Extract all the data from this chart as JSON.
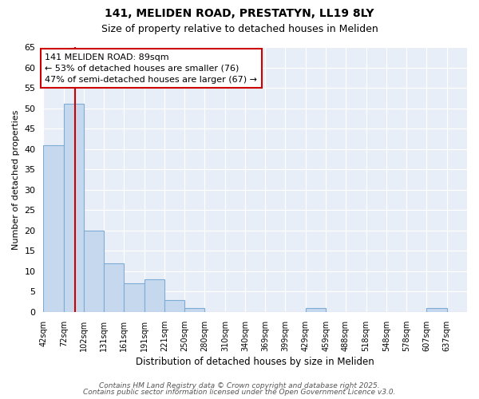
{
  "title1": "141, MELIDEN ROAD, PRESTATYN, LL19 8LY",
  "title2": "Size of property relative to detached houses in Meliden",
  "xlabel": "Distribution of detached houses by size in Meliden",
  "ylabel": "Number of detached properties",
  "bin_edges": [
    42,
    72,
    102,
    131,
    161,
    191,
    221,
    250,
    280,
    310,
    340,
    369,
    399,
    429,
    459,
    488,
    518,
    548,
    578,
    607,
    637
  ],
  "bin_labels": [
    "42sqm",
    "72sqm",
    "102sqm",
    "131sqm",
    "161sqm",
    "191sqm",
    "221sqm",
    "250sqm",
    "280sqm",
    "310sqm",
    "340sqm",
    "369sqm",
    "399sqm",
    "429sqm",
    "459sqm",
    "488sqm",
    "518sqm",
    "548sqm",
    "578sqm",
    "607sqm",
    "637sqm"
  ],
  "counts": [
    41,
    51,
    20,
    12,
    7,
    8,
    3,
    1,
    0,
    0,
    0,
    0,
    0,
    1,
    0,
    0,
    0,
    0,
    0,
    1,
    0
  ],
  "bar_color": "#c5d8ee",
  "bar_edge_color": "#7dadd4",
  "property_size": 89,
  "red_line_color": "#cc0000",
  "annotation_text": "141 MELIDEN ROAD: 89sqm\n← 53% of detached houses are smaller (76)\n47% of semi-detached houses are larger (67) →",
  "annotation_box_color": "#ffffff",
  "annotation_box_edge": "#cc0000",
  "ylim": [
    0,
    65
  ],
  "yticks": [
    0,
    5,
    10,
    15,
    20,
    25,
    30,
    35,
    40,
    45,
    50,
    55,
    60,
    65
  ],
  "footer1": "Contains HM Land Registry data © Crown copyright and database right 2025.",
  "footer2": "Contains public sector information licensed under the Open Government Licence v3.0.",
  "bg_color": "#ffffff",
  "plot_bg_color": "#e8eef7",
  "grid_color": "#ffffff"
}
